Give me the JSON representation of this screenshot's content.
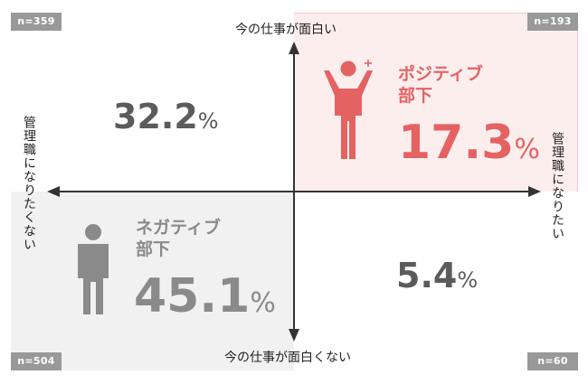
{
  "chart_data": {
    "type": "quadrant",
    "axes": {
      "top": "今の仕事が面白い",
      "bottom": "今の仕事が面白くない",
      "left": "管理職になりたくない",
      "right": "管理職になりたい"
    },
    "quadrants": {
      "top_left": {
        "n": "n=359",
        "value": "32.2",
        "unit": "%"
      },
      "top_right": {
        "n": "n=193",
        "value": "17.3",
        "unit": "%",
        "title_line1": "ポジティブ",
        "title_line2": "部下"
      },
      "bottom_left": {
        "n": "n=504",
        "value": "45.1",
        "unit": "%",
        "title_line1": "ネガティブ",
        "title_line2": "部下"
      },
      "bottom_right": {
        "n": "n=60",
        "value": "5.4",
        "unit": "%"
      }
    }
  },
  "colors": {
    "positive": "#e56262",
    "negative": "#8a8a8a",
    "text_dark": "#5b5b5b",
    "badge": "#999999",
    "axis": "#333333"
  },
  "icons": {
    "positive": "cheering-person-icon",
    "negative": "standing-person-icon"
  }
}
